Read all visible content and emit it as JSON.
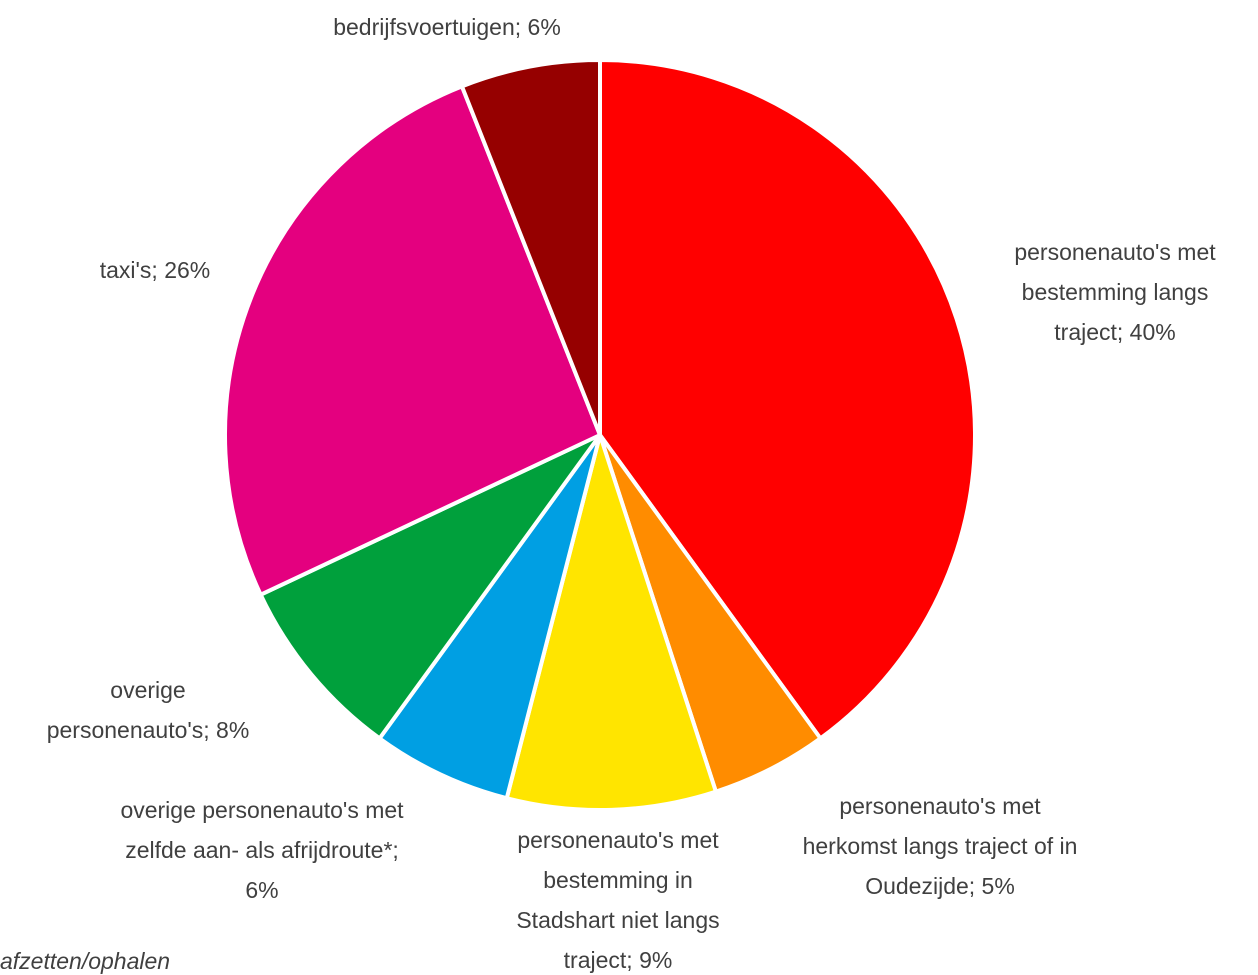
{
  "chart_data": {
    "type": "pie",
    "values": [
      40,
      5,
      9,
      6,
      8,
      26,
      6
    ],
    "value_labels": [
      "personenauto's met bestemming langs traject; 40%",
      "personenauto's met herkomst langs traject of in Oudezijde; 5%",
      "personenauto's met bestemming in Stadshart niet langs traject; 9%",
      "overige personenauto's met zelfde aan- als afrijdroute*; 6%",
      "overige personenauto's; 8%",
      "taxi's; 26%",
      "bedrijfsvoertuigen; 6%"
    ],
    "colors": [
      "#ff0000",
      "#ff8c00",
      "#ffe500",
      "#009fe3",
      "#00a03c",
      "#e4007f",
      "#960000"
    ],
    "footnote": "afzetten/ophalen"
  }
}
